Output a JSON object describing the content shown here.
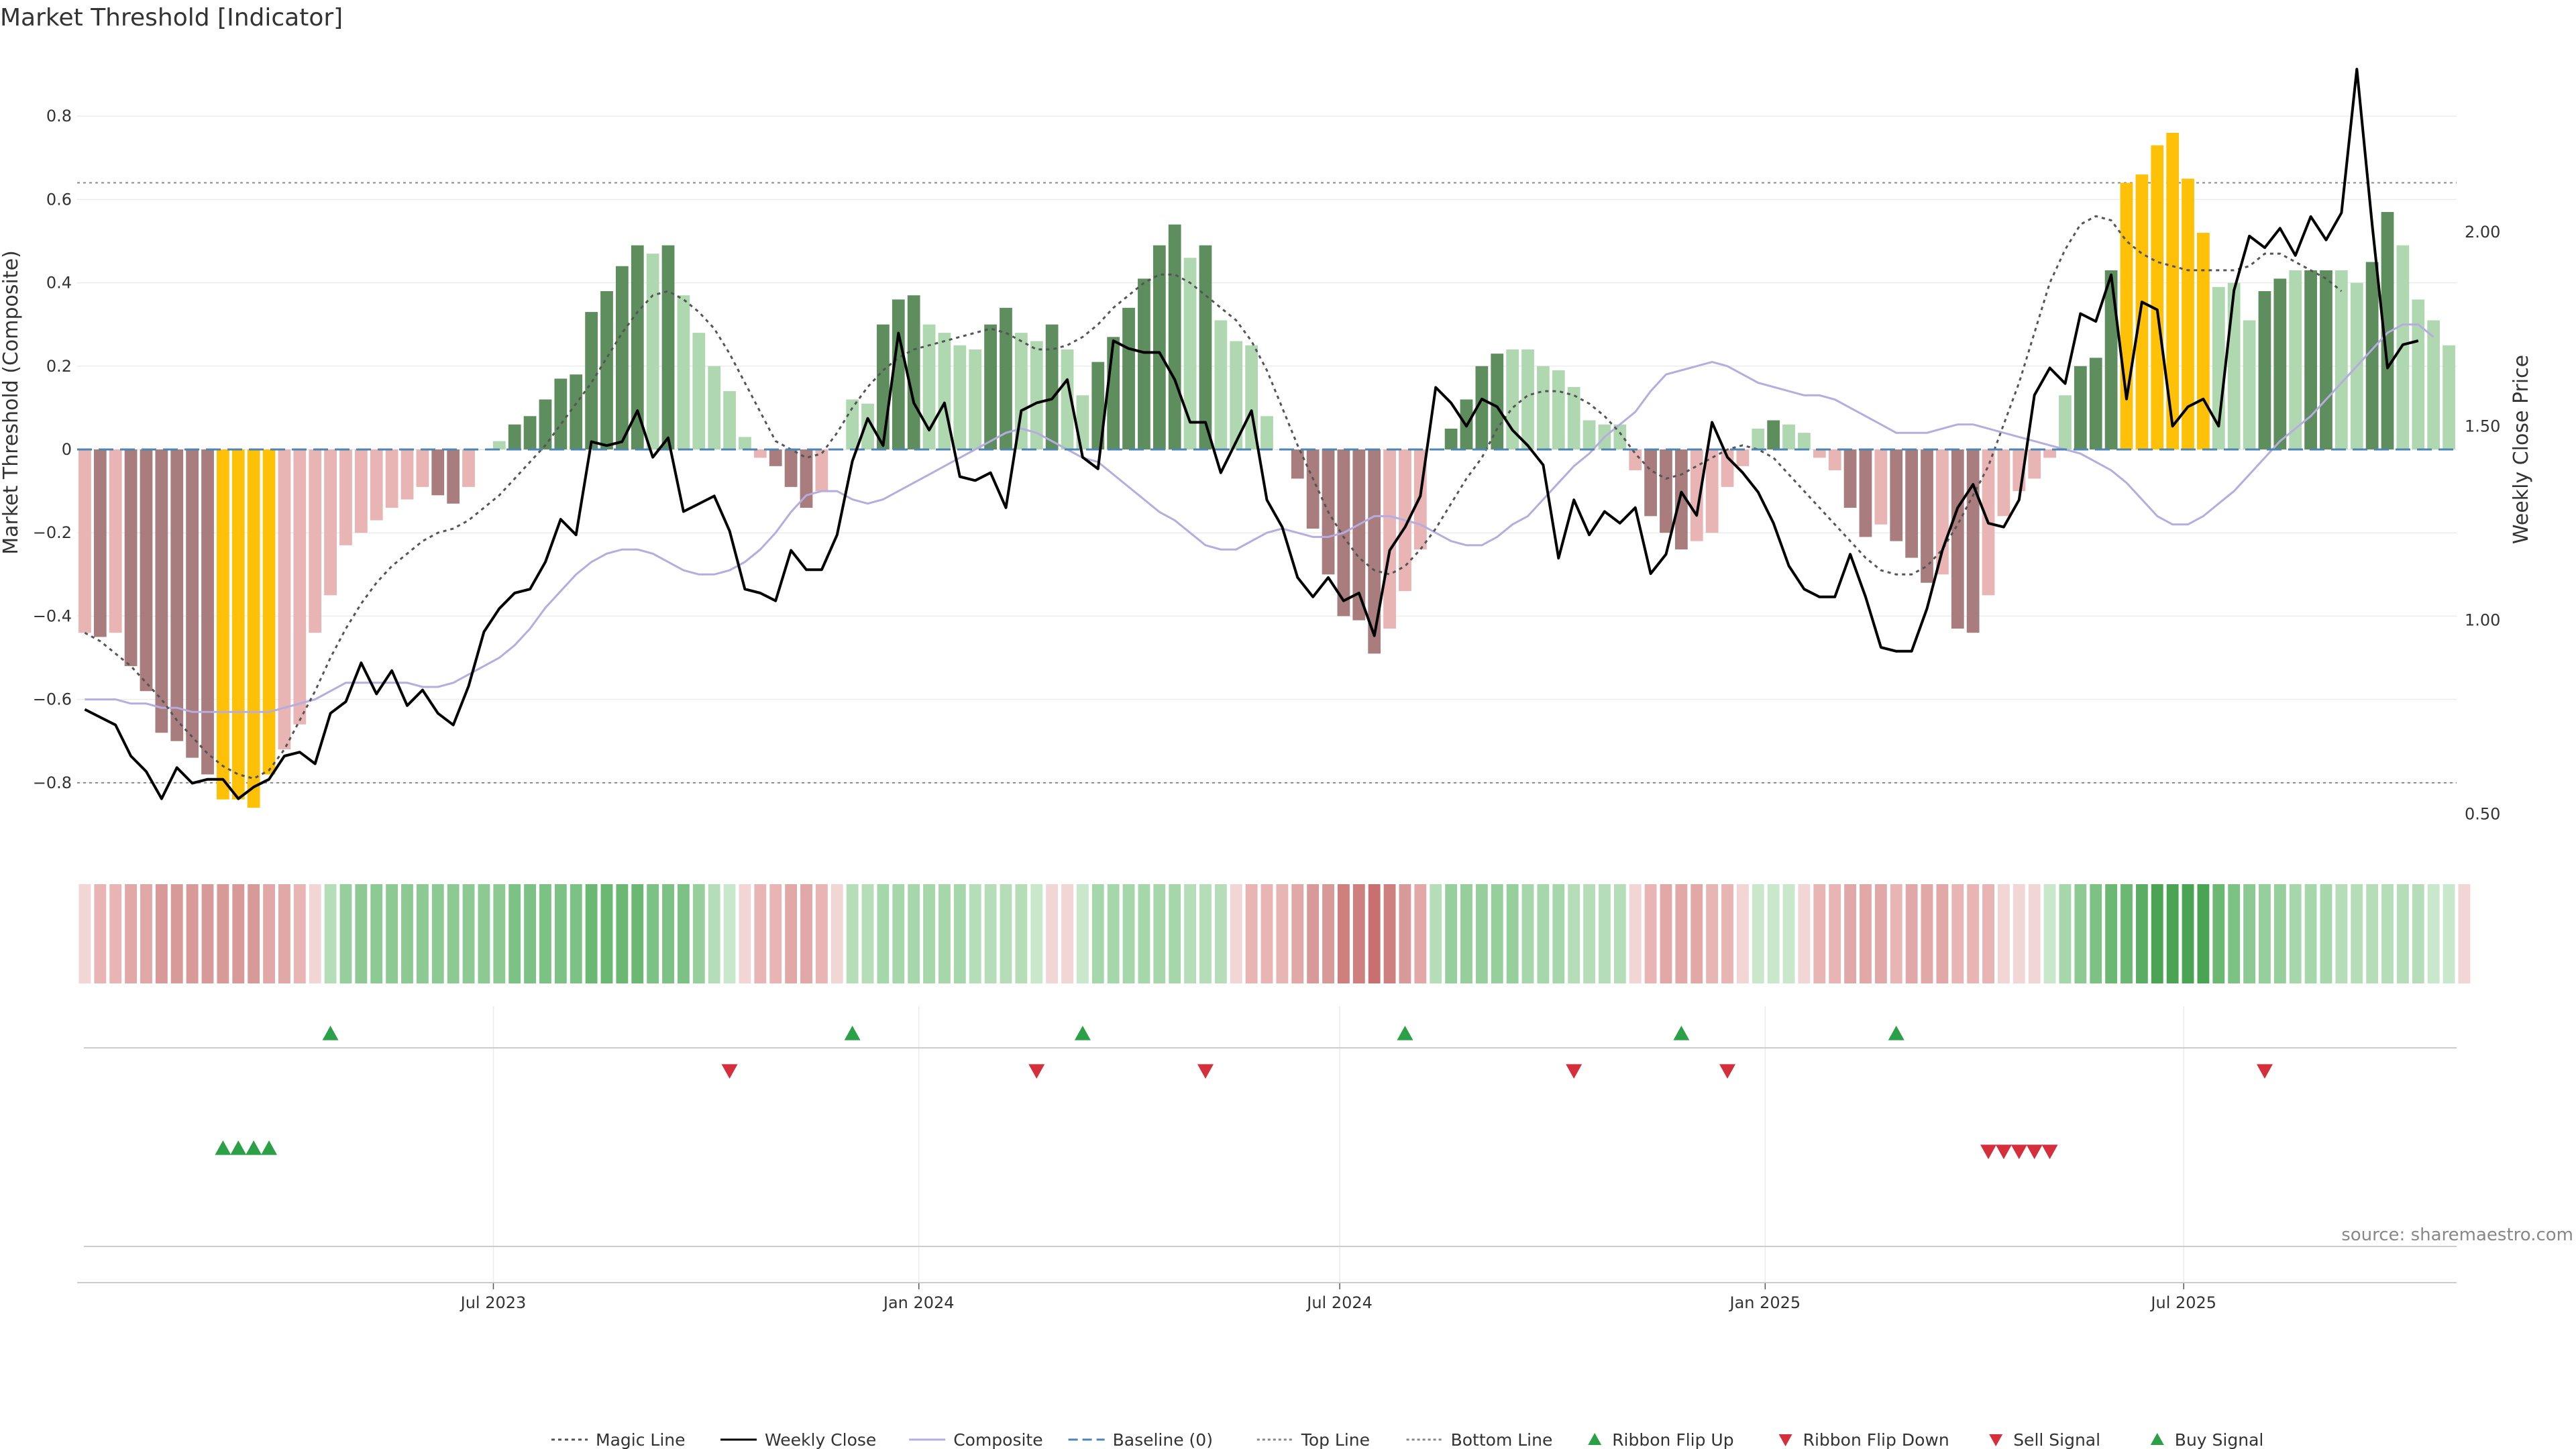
{
  "chart_data": {
    "type": "bar",
    "title": "Market Threshold [Indicator]",
    "ylabel": "Market Threshold (Composite)",
    "ylabel_right": "Weekly Close Price",
    "ylim": [
      -0.95,
      0.95
    ],
    "ylim_right": [
      0.42,
      2.46
    ],
    "yticks": [
      -0.8,
      -0.6,
      -0.4,
      -0.2,
      0,
      0.2,
      0.4,
      0.6,
      0.8
    ],
    "yticks_right": [
      0.5,
      1.0,
      1.5,
      2.0
    ],
    "top_line": 0.64,
    "bottom_line": -0.8,
    "x_start": "2023-01-02",
    "x_end": "2025-10-27",
    "xticks": [
      {
        "date": "2023-07-01",
        "label": "Jul 2023"
      },
      {
        "date": "2024-01-01",
        "label": "Jan 2024"
      },
      {
        "date": "2024-07-01",
        "label": "Jul 2024"
      },
      {
        "date": "2025-01-01",
        "label": "Jan 2025"
      },
      {
        "date": "2025-07-01",
        "label": "Jul 2025"
      }
    ],
    "composite_bars": [
      -0.44,
      -0.45,
      -0.44,
      -0.52,
      -0.58,
      -0.68,
      -0.7,
      -0.74,
      -0.78,
      -0.84,
      -0.84,
      -0.86,
      -0.78,
      -0.72,
      -0.66,
      -0.44,
      -0.35,
      -0.23,
      -0.2,
      -0.17,
      -0.14,
      -0.12,
      -0.09,
      -0.11,
      -0.13,
      -0.09,
      0.0,
      0.02,
      0.06,
      0.08,
      0.12,
      0.17,
      0.18,
      0.33,
      0.38,
      0.44,
      0.49,
      0.47,
      0.49,
      0.37,
      0.28,
      0.2,
      0.14,
      0.03,
      -0.02,
      -0.04,
      -0.09,
      -0.14,
      -0.1,
      0.0,
      0.12,
      0.11,
      0.3,
      0.36,
      0.37,
      0.3,
      0.28,
      0.25,
      0.24,
      0.3,
      0.34,
      0.28,
      0.26,
      0.3,
      0.24,
      0.13,
      0.21,
      0.27,
      0.34,
      0.41,
      0.49,
      0.54,
      0.46,
      0.49,
      0.31,
      0.26,
      0.25,
      0.08,
      0.0,
      -0.07,
      -0.19,
      -0.3,
      -0.4,
      -0.41,
      -0.49,
      -0.43,
      -0.34,
      -0.24,
      0.0,
      0.05,
      0.12,
      0.2,
      0.23,
      0.24,
      0.24,
      0.2,
      0.19,
      0.15,
      0.07,
      0.06,
      0.06,
      -0.05,
      -0.16,
      -0.2,
      -0.24,
      -0.22,
      -0.2,
      -0.09,
      -0.04,
      0.05,
      0.07,
      0.06,
      0.04,
      -0.02,
      -0.05,
      -0.14,
      -0.21,
      -0.18,
      -0.22,
      -0.26,
      -0.32,
      -0.3,
      -0.43,
      -0.44,
      -0.35,
      -0.16,
      -0.1,
      -0.07,
      -0.02,
      0.13,
      0.2,
      0.22,
      0.43,
      0.64,
      0.66,
      0.73,
      0.76,
      0.65,
      0.52,
      0.39,
      0.4,
      0.31,
      0.38,
      0.41,
      0.43,
      0.43,
      0.43,
      0.43,
      0.4,
      0.45,
      0.57,
      0.49,
      0.36,
      0.31,
      0.25
    ],
    "bar_colors": [
      "#e8b4b4",
      "#a97d7d",
      "#e8b4b4",
      "#a97d7d",
      "#a97d7d",
      "#a97d7d",
      "#a97d7d",
      "#a97d7d",
      "#a97d7d",
      "#ffc107",
      "#ffc107",
      "#ffc107",
      "#ffc107",
      "#e8b4b4",
      "#e8b4b4",
      "#e8b4b4",
      "#e8b4b4",
      "#e8b4b4",
      "#e8b4b4",
      "#e8b4b4",
      "#e8b4b4",
      "#e8b4b4",
      "#e8b4b4",
      "#a97d7d",
      "#a97d7d",
      "#e8b4b4",
      "#b0d8b0",
      "#b0d8b0",
      "#5e8e5e",
      "#5e8e5e",
      "#5e8e5e",
      "#5e8e5e",
      "#5e8e5e",
      "#5e8e5e",
      "#5e8e5e",
      "#5e8e5e",
      "#5e8e5e",
      "#b0d8b0",
      "#5e8e5e",
      "#b0d8b0",
      "#b0d8b0",
      "#b0d8b0",
      "#b0d8b0",
      "#b0d8b0",
      "#e8b4b4",
      "#a97d7d",
      "#a97d7d",
      "#a97d7d",
      "#e8b4b4",
      "#b0d8b0",
      "#b0d8b0",
      "#b0d8b0",
      "#5e8e5e",
      "#5e8e5e",
      "#5e8e5e",
      "#b0d8b0",
      "#b0d8b0",
      "#b0d8b0",
      "#b0d8b0",
      "#5e8e5e",
      "#5e8e5e",
      "#b0d8b0",
      "#b0d8b0",
      "#5e8e5e",
      "#b0d8b0",
      "#b0d8b0",
      "#5e8e5e",
      "#5e8e5e",
      "#5e8e5e",
      "#5e8e5e",
      "#5e8e5e",
      "#5e8e5e",
      "#b0d8b0",
      "#5e8e5e",
      "#b0d8b0",
      "#b0d8b0",
      "#b0d8b0",
      "#b0d8b0",
      "#b0d8b0",
      "#a97d7d",
      "#a97d7d",
      "#a97d7d",
      "#a97d7d",
      "#a97d7d",
      "#a97d7d",
      "#e8b4b4",
      "#e8b4b4",
      "#e8b4b4",
      "#5e8e5e",
      "#5e8e5e",
      "#5e8e5e",
      "#5e8e5e",
      "#5e8e5e",
      "#b0d8b0",
      "#b0d8b0",
      "#b0d8b0",
      "#b0d8b0",
      "#b0d8b0",
      "#b0d8b0",
      "#b0d8b0",
      "#b0d8b0",
      "#e8b4b4",
      "#a97d7d",
      "#a97d7d",
      "#a97d7d",
      "#e8b4b4",
      "#e8b4b4",
      "#e8b4b4",
      "#e8b4b4",
      "#b0d8b0",
      "#5e8e5e",
      "#b0d8b0",
      "#b0d8b0",
      "#e8b4b4",
      "#e8b4b4",
      "#a97d7d",
      "#a97d7d",
      "#e8b4b4",
      "#a97d7d",
      "#a97d7d",
      "#a97d7d",
      "#e8b4b4",
      "#a97d7d",
      "#a97d7d",
      "#e8b4b4",
      "#e8b4b4",
      "#e8b4b4",
      "#e8b4b4",
      "#e8b4b4",
      "#b0d8b0",
      "#5e8e5e",
      "#5e8e5e",
      "#5e8e5e",
      "#ffc107",
      "#ffc107",
      "#ffc107",
      "#ffc107",
      "#ffc107",
      "#ffc107",
      "#b0d8b0",
      "#b0d8b0",
      "#b0d8b0",
      "#5e8e5e",
      "#5e8e5e",
      "#b0d8b0",
      "#5e8e5e",
      "#5e8e5e",
      "#b0d8b0",
      "#b0d8b0",
      "#5e8e5e",
      "#5e8e5e",
      "#b0d8b0",
      "#b0d8b0",
      "#b0d8b0",
      "#b0d8b0"
    ],
    "weekly_close": [
      0.77,
      0.75,
      0.73,
      0.65,
      0.61,
      0.54,
      0.62,
      0.58,
      0.59,
      0.59,
      0.54,
      0.57,
      0.59,
      0.65,
      0.66,
      0.63,
      0.76,
      0.79,
      0.89,
      0.81,
      0.87,
      0.78,
      0.82,
      0.76,
      0.73,
      0.83,
      0.97,
      1.03,
      1.07,
      1.08,
      1.15,
      1.26,
      1.22,
      1.46,
      1.45,
      1.46,
      1.54,
      1.42,
      1.47,
      1.28,
      1.3,
      1.32,
      1.23,
      1.08,
      1.07,
      1.05,
      1.18,
      1.13,
      1.13,
      1.22,
      1.41,
      1.52,
      1.45,
      1.74,
      1.56,
      1.49,
      1.56,
      1.37,
      1.36,
      1.38,
      1.29,
      1.54,
      1.56,
      1.57,
      1.62,
      1.42,
      1.39,
      1.72,
      1.7,
      1.69,
      1.69,
      1.62,
      1.51,
      1.51,
      1.38,
      1.46,
      1.54,
      1.31,
      1.24,
      1.11,
      1.06,
      1.11,
      1.05,
      1.07,
      0.96,
      1.18,
      1.24,
      1.32,
      1.6,
      1.56,
      1.5,
      1.57,
      1.55,
      1.49,
      1.45,
      1.4,
      1.16,
      1.31,
      1.22,
      1.28,
      1.25,
      1.29,
      1.12,
      1.17,
      1.33,
      1.27,
      1.51,
      1.42,
      1.38,
      1.33,
      1.25,
      1.14,
      1.08,
      1.06,
      1.06,
      1.17,
      1.06,
      0.93,
      0.92,
      0.92,
      1.03,
      1.18,
      1.29,
      1.35,
      1.25,
      1.24,
      1.31,
      1.58,
      1.65,
      1.61,
      1.79,
      1.77,
      1.89,
      1.57,
      1.82,
      1.8,
      1.5,
      1.55,
      1.57,
      1.5,
      1.85,
      1.99,
      1.96,
      2.01,
      1.94,
      2.04,
      1.98,
      2.05,
      2.42,
      2.02,
      1.65,
      1.71,
      1.72
    ],
    "magic_line": [
      -0.44,
      -0.46,
      -0.49,
      -0.52,
      -0.56,
      -0.6,
      -0.65,
      -0.69,
      -0.73,
      -0.76,
      -0.78,
      -0.79,
      -0.77,
      -0.72,
      -0.65,
      -0.58,
      -0.5,
      -0.43,
      -0.37,
      -0.32,
      -0.28,
      -0.25,
      -0.22,
      -0.2,
      -0.19,
      -0.17,
      -0.14,
      -0.11,
      -0.07,
      -0.03,
      0.01,
      0.06,
      0.11,
      0.16,
      0.22,
      0.28,
      0.33,
      0.37,
      0.38,
      0.36,
      0.33,
      0.29,
      0.23,
      0.16,
      0.09,
      0.02,
      0.0,
      -0.02,
      -0.01,
      0.04,
      0.1,
      0.15,
      0.19,
      0.22,
      0.24,
      0.25,
      0.26,
      0.27,
      0.28,
      0.29,
      0.28,
      0.26,
      0.24,
      0.24,
      0.25,
      0.27,
      0.3,
      0.34,
      0.37,
      0.4,
      0.42,
      0.42,
      0.4,
      0.37,
      0.34,
      0.31,
      0.26,
      0.19,
      0.1,
      0.01,
      -0.07,
      -0.15,
      -0.21,
      -0.26,
      -0.29,
      -0.3,
      -0.28,
      -0.24,
      -0.19,
      -0.13,
      -0.07,
      -0.02,
      0.05,
      0.1,
      0.13,
      0.14,
      0.14,
      0.13,
      0.11,
      0.08,
      0.04,
      -0.01,
      -0.05,
      -0.07,
      -0.06,
      -0.04,
      -0.02,
      0.0,
      0.01,
      0.0,
      -0.02,
      -0.06,
      -0.1,
      -0.14,
      -0.18,
      -0.22,
      -0.26,
      -0.29,
      -0.3,
      -0.3,
      -0.28,
      -0.24,
      -0.18,
      -0.11,
      -0.04,
      0.06,
      0.16,
      0.28,
      0.4,
      0.48,
      0.54,
      0.56,
      0.55,
      0.5,
      0.47,
      0.45,
      0.44,
      0.43,
      0.43,
      0.43,
      0.43,
      0.44,
      0.47,
      0.47,
      0.45,
      0.43,
      0.41,
      0.38
    ],
    "composite_line": [
      -0.6,
      -0.6,
      -0.6,
      -0.61,
      -0.61,
      -0.62,
      -0.62,
      -0.63,
      -0.63,
      -0.63,
      -0.63,
      -0.63,
      -0.63,
      -0.62,
      -0.61,
      -0.6,
      -0.58,
      -0.56,
      -0.56,
      -0.56,
      -0.56,
      -0.56,
      -0.57,
      -0.57,
      -0.56,
      -0.54,
      -0.52,
      -0.5,
      -0.47,
      -0.43,
      -0.38,
      -0.34,
      -0.3,
      -0.27,
      -0.25,
      -0.24,
      -0.24,
      -0.25,
      -0.27,
      -0.29,
      -0.3,
      -0.3,
      -0.29,
      -0.27,
      -0.24,
      -0.2,
      -0.15,
      -0.11,
      -0.1,
      -0.1,
      -0.12,
      -0.13,
      -0.12,
      -0.1,
      -0.08,
      -0.06,
      -0.04,
      -0.02,
      0.0,
      0.02,
      0.04,
      0.05,
      0.04,
      0.02,
      0.0,
      -0.02,
      -0.03,
      -0.06,
      -0.09,
      -0.12,
      -0.15,
      -0.17,
      -0.2,
      -0.23,
      -0.24,
      -0.24,
      -0.22,
      -0.2,
      -0.19,
      -0.2,
      -0.21,
      -0.21,
      -0.2,
      -0.18,
      -0.16,
      -0.16,
      -0.17,
      -0.18,
      -0.2,
      -0.22,
      -0.23,
      -0.23,
      -0.21,
      -0.18,
      -0.16,
      -0.12,
      -0.08,
      -0.04,
      -0.01,
      0.03,
      0.06,
      0.09,
      0.14,
      0.18,
      0.19,
      0.2,
      0.21,
      0.2,
      0.18,
      0.16,
      0.15,
      0.14,
      0.13,
      0.13,
      0.12,
      0.1,
      0.08,
      0.06,
      0.04,
      0.04,
      0.04,
      0.05,
      0.06,
      0.06,
      0.05,
      0.04,
      0.03,
      0.02,
      0.01,
      0.0,
      -0.01,
      -0.03,
      -0.05,
      -0.08,
      -0.12,
      -0.16,
      -0.18,
      -0.18,
      -0.16,
      -0.13,
      -0.1,
      -0.06,
      -0.02,
      0.02,
      0.05,
      0.08,
      0.12,
      0.16,
      0.2,
      0.24,
      0.28,
      0.3,
      0.3,
      0.27
    ],
    "ribbon_colors": [
      "#f2d6d6",
      "#e8b4b4",
      "#e8b4b4",
      "#e2a8a8",
      "#e2a8a8",
      "#d89999",
      "#d89999",
      "#d89999",
      "#d89999",
      "#d89999",
      "#d89999",
      "#d89999",
      "#e2a8a8",
      "#e2a8a8",
      "#e8b4b4",
      "#f2d6d6",
      "#b5deb8",
      "#96cf9c",
      "#8cc993",
      "#8cc993",
      "#8cc993",
      "#8cc993",
      "#8cc993",
      "#8cc993",
      "#8cc993",
      "#8cc993",
      "#8cc993",
      "#8cc993",
      "#7dc285",
      "#7dc285",
      "#7dc285",
      "#7dc285",
      "#7dc285",
      "#6bb873",
      "#6bb873",
      "#6bb873",
      "#6bb873",
      "#7dc285",
      "#7dc285",
      "#7dc285",
      "#96cf9c",
      "#b5deb8",
      "#c9e8cb",
      "#f2d6d6",
      "#e8b4b4",
      "#e8b4b4",
      "#e2a8a8",
      "#e2a8a8",
      "#e8b4b4",
      "#f2d6d6",
      "#b5deb8",
      "#b5deb8",
      "#a6d7ab",
      "#a6d7ab",
      "#a6d7ab",
      "#a6d7ab",
      "#a6d7ab",
      "#a6d7ab",
      "#b5deb8",
      "#b5deb8",
      "#b5deb8",
      "#b5deb8",
      "#c9e8cb",
      "#f2d6d6",
      "#f2d6d6",
      "#c9e8cb",
      "#a6d7ab",
      "#a6d7ab",
      "#a6d7ab",
      "#a6d7ab",
      "#a6d7ab",
      "#a6d7ab",
      "#b5deb8",
      "#b5deb8",
      "#b5deb8",
      "#f2d6d6",
      "#e8b4b4",
      "#e8b4b4",
      "#e8b4b4",
      "#e2a8a8",
      "#d89999",
      "#d89999",
      "#d07f7f",
      "#d07f7f",
      "#c96f6f",
      "#d07f7f",
      "#d89999",
      "#e2a8a8",
      "#b5deb8",
      "#96cf9c",
      "#96cf9c",
      "#96cf9c",
      "#96cf9c",
      "#96cf9c",
      "#a6d7ab",
      "#a6d7ab",
      "#a6d7ab",
      "#b5deb8",
      "#b5deb8",
      "#b5deb8",
      "#b5deb8",
      "#f2d6d6",
      "#e8b4b4",
      "#e2a8a8",
      "#e2a8a8",
      "#e2a8a8",
      "#e8b4b4",
      "#e8b4b4",
      "#f2d6d6",
      "#c9e8cb",
      "#c9e8cb",
      "#c9e8cb",
      "#f2d6d6",
      "#e8b4b4",
      "#e8b4b4",
      "#e2a8a8",
      "#e2a8a8",
      "#e2a8a8",
      "#e8b4b4",
      "#e2a8a8",
      "#e2a8a8",
      "#e2a8a8",
      "#e8b4b4",
      "#e8b4b4",
      "#e8b4b4",
      "#f2d6d6",
      "#f2d6d6",
      "#f2d6d6",
      "#c9e8cb",
      "#a6d7ab",
      "#8cc993",
      "#7dc285",
      "#6bb873",
      "#6bb873",
      "#5aad62",
      "#4ba354",
      "#4ba354",
      "#4ba354",
      "#4ba354",
      "#6bb873",
      "#7dc285",
      "#8cc993",
      "#96cf9c",
      "#96cf9c",
      "#a6d7ab",
      "#a6d7ab",
      "#a6d7ab",
      "#b5deb8",
      "#b5deb8",
      "#b5deb8",
      "#b5deb8",
      "#b5deb8",
      "#b5deb8",
      "#c9e8cb",
      "#c9e8cb",
      "#f2d6d6"
    ],
    "ribbon_flip_up": [
      16,
      50,
      65,
      86,
      104,
      118
    ],
    "ribbon_flip_down": [
      42,
      62,
      73,
      97,
      107,
      142
    ],
    "buy_signals": [
      9,
      10,
      11,
      12
    ],
    "sell_signals": [
      124,
      125,
      126,
      127,
      128
    ],
    "legend": [
      "Magic Line",
      "Weekly Close",
      "Composite",
      "Baseline (0)",
      "Top Line",
      "Bottom Line",
      "Ribbon Flip Up",
      "Ribbon Flip Down",
      "Sell Signal",
      "Buy Signal"
    ],
    "source": "source: sharemaestro.com",
    "colors": {
      "magic": "#555555",
      "close": "#000000",
      "composite": "#b5acdf",
      "baseline": "#4b86b4",
      "threshold": "#888888",
      "up_triangle": "#2ca046",
      "down_triangle": "#d62f3c"
    }
  }
}
